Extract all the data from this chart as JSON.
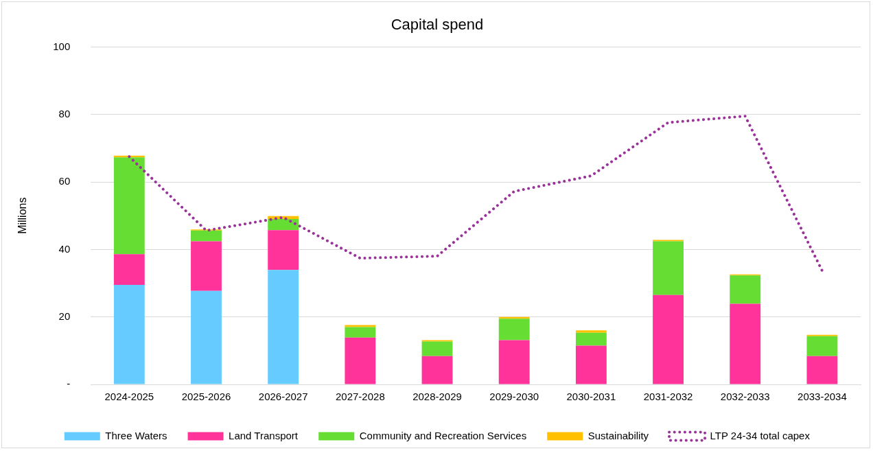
{
  "chart_data": {
    "type": "bar",
    "title": "Capital spend",
    "ylabel": "Millions",
    "stacked": true,
    "categories": [
      "2024-2025",
      "2025-2026",
      "2026-2027",
      "2027-2028",
      "2028-2029",
      "2029-2030",
      "2030-2031",
      "2031-2032",
      "2032-2033",
      "2033-2034"
    ],
    "series": [
      {
        "name": "Three Waters",
        "color": "#66ccff",
        "values": [
          29.5,
          27.7,
          33.9,
          null,
          null,
          null,
          null,
          null,
          null,
          null
        ]
      },
      {
        "name": "Land Transport",
        "color": "#ff3399",
        "values": [
          9.1,
          14.7,
          11.8,
          13.9,
          8.4,
          13.1,
          11.5,
          26.5,
          23.9,
          8.4
        ]
      },
      {
        "name": "Community and Recreation Services",
        "color": "#66dd33",
        "values": [
          28.7,
          3.2,
          3.3,
          3.1,
          4.3,
          6.4,
          3.8,
          15.9,
          8.4,
          5.9
        ]
      },
      {
        "name": "Sustainability",
        "color": "#ffc000",
        "values": [
          0.5,
          0.3,
          0.9,
          0.6,
          0.4,
          0.5,
          0.7,
          0.4,
          0.3,
          0.4
        ]
      },
      {
        "name": "LTP 24-34 total capex",
        "type": "line",
        "color": "#993399",
        "line_style": "dotted",
        "marker": "none",
        "values": [
          67.5,
          45.6,
          49.5,
          37.4,
          38.0,
          57.2,
          61.8,
          77.6,
          79.5,
          33.7
        ]
      }
    ],
    "ylim": [
      0,
      100
    ],
    "yticks": [
      {
        "value": 0,
        "label": "-"
      },
      20,
      40,
      60,
      80,
      100
    ],
    "grid": "y",
    "legend": "bottom"
  }
}
